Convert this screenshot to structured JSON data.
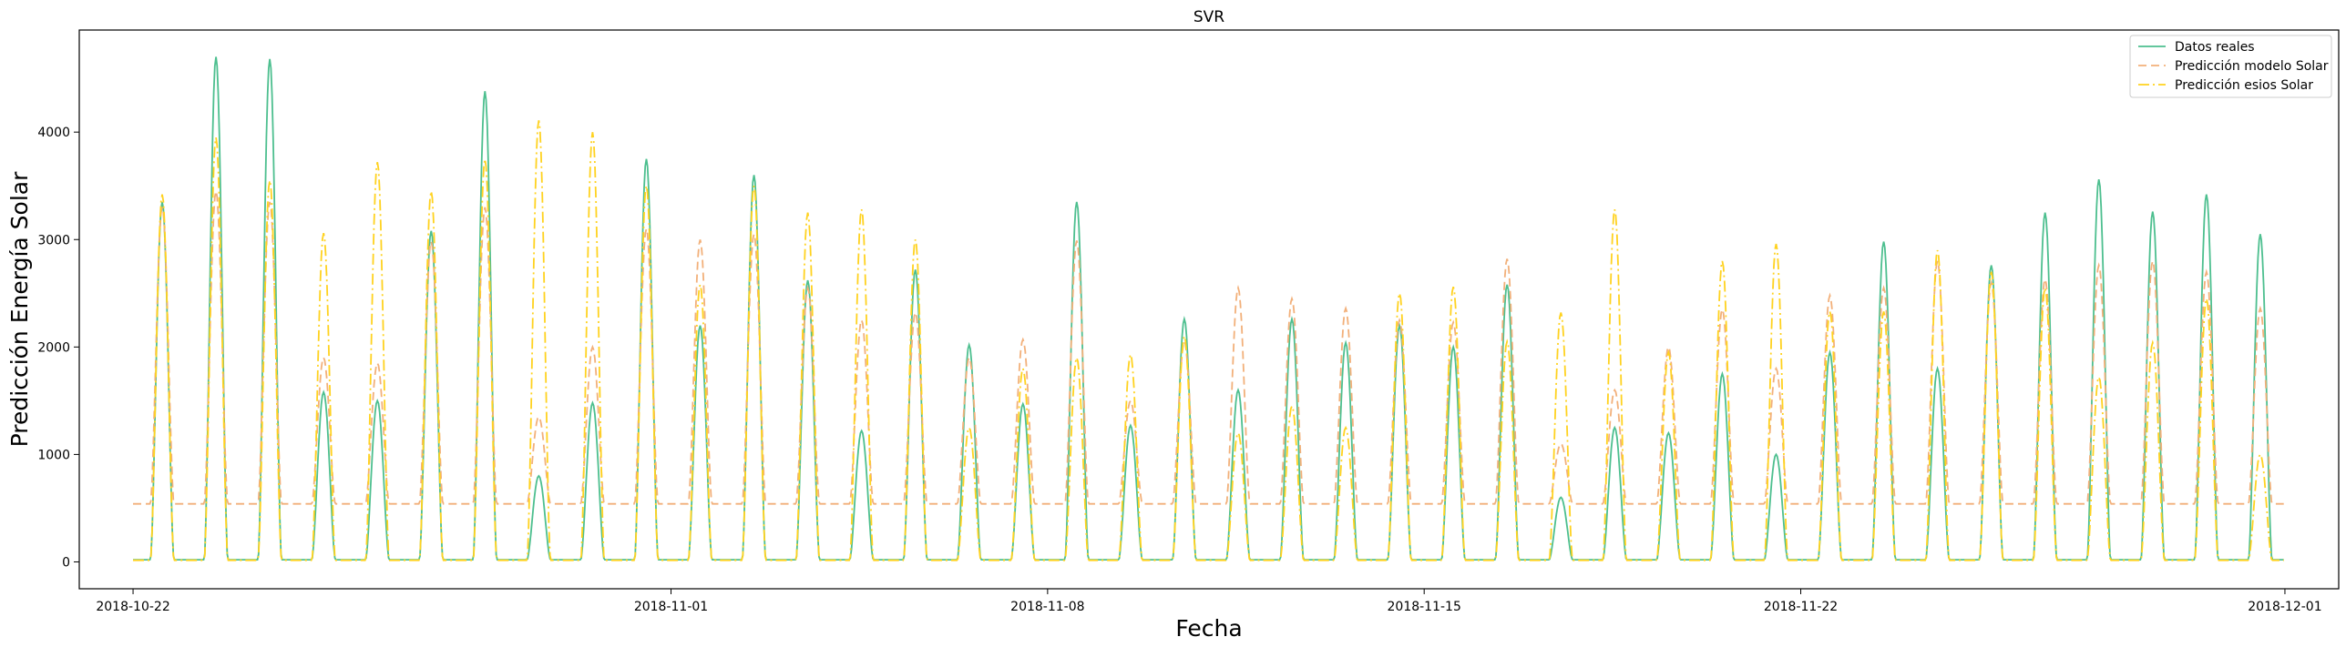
{
  "chart_data": {
    "type": "line",
    "title": "SVR",
    "xlabel": "Fecha",
    "ylabel": "Predicción Energía Solar",
    "xlim": [
      "2018-10-21",
      "2018-12-02"
    ],
    "ylim": [
      -250,
      4950
    ],
    "x_ticks": [
      "2018-10-22",
      "2018-11-01",
      "2018-11-08",
      "2018-11-15",
      "2018-11-22",
      "2018-12-01"
    ],
    "y_ticks": [
      0,
      1000,
      2000,
      3000,
      4000
    ],
    "grid": false,
    "legend_position": "top-right",
    "start_date": "2018-10-22",
    "end_date": "2018-11-30",
    "series": [
      {
        "name": "Datos reales",
        "color": "#4dbf8f",
        "style": "solid",
        "night_value": 20,
        "daily_peaks": [
          3350,
          4700,
          4680,
          1580,
          1500,
          3080,
          4380,
          800,
          1480,
          3750,
          2200,
          3600,
          2620,
          1220,
          2720,
          2020,
          1470,
          3350,
          1270,
          2260,
          1600,
          2260,
          2040,
          2200,
          2000,
          2580,
          600,
          1250,
          1200,
          1750,
          1000,
          1950,
          2980,
          1800,
          2760,
          3250,
          3560,
          3260,
          3420,
          3050
        ]
      },
      {
        "name": "Predicción modelo Solar",
        "color": "#f2b07a",
        "style": "dashed",
        "night_value": 540,
        "daily_peaks": [
          3300,
          3450,
          3350,
          1900,
          1850,
          2980,
          3300,
          1350,
          2000,
          3100,
          3000,
          3050,
          2550,
          2250,
          2320,
          1900,
          2070,
          2990,
          1500,
          2050,
          2550,
          2450,
          2360,
          2250,
          2230,
          2820,
          1100,
          1600,
          2000,
          2350,
          1800,
          2480,
          2550,
          2800,
          2600,
          2630,
          2760,
          2800,
          2700,
          2360
        ]
      },
      {
        "name": "Predicción esios Solar",
        "color": "#ffd21f",
        "style": "dashdot",
        "night_value": 15,
        "daily_peaks": [
          3420,
          3950,
          3550,
          3060,
          3720,
          3450,
          3750,
          4110,
          4000,
          3500,
          2580,
          3500,
          3250,
          3280,
          3000,
          1250,
          1800,
          1900,
          1930,
          2100,
          1200,
          1450,
          1250,
          2500,
          2560,
          2050,
          2320,
          3280,
          1950,
          2800,
          2960,
          2330,
          2330,
          2900,
          2700,
          2550,
          1720,
          2040,
          2450,
          1000
        ]
      }
    ]
  }
}
